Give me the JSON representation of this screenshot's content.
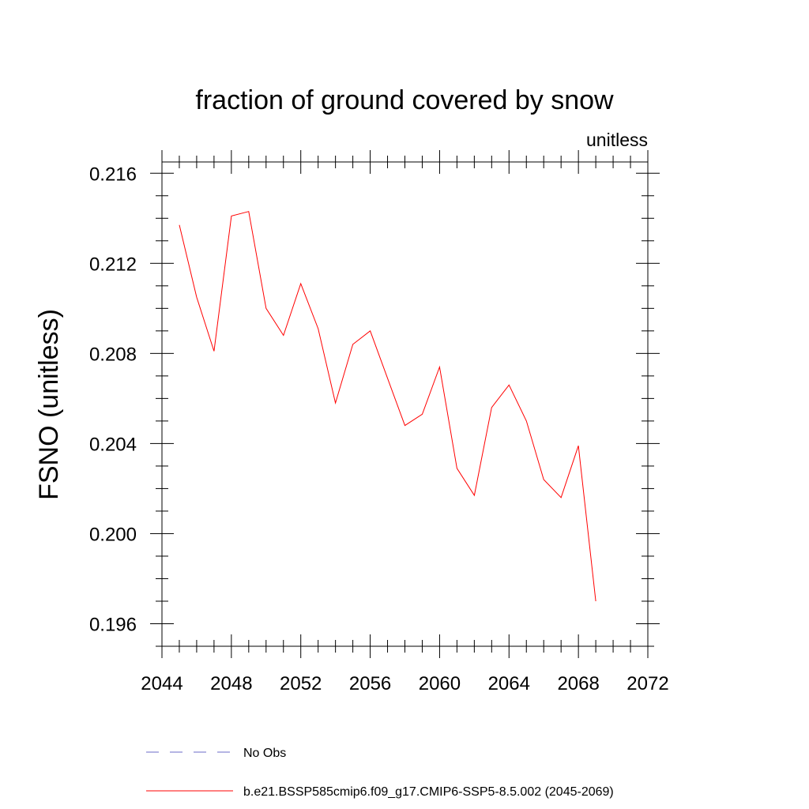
{
  "chart_data": {
    "type": "line",
    "title": "fraction of ground covered by snow",
    "units_label": "unitless",
    "xlabel": "",
    "ylabel": "FSNO  (unitless)",
    "xlim": [
      2044,
      2072
    ],
    "ylim": [
      0.195,
      0.2165
    ],
    "x_ticks": [
      2044,
      2048,
      2052,
      2056,
      2060,
      2064,
      2068,
      2072
    ],
    "x_tick_labels": [
      "2044",
      "2048",
      "2052",
      "2056",
      "2060",
      "2064",
      "2068",
      "2072"
    ],
    "y_ticks": [
      0.196,
      0.2,
      0.204,
      0.208,
      0.212,
      0.216
    ],
    "y_tick_labels": [
      "0.196",
      "0.200",
      "0.204",
      "0.208",
      "0.212",
      "0.216"
    ],
    "grid": false,
    "legend_position": "bottom",
    "series": [
      {
        "name": "b.e21.BSSP585cmip6.f09_g17.CMIP6-SSP5-8.5.002 (2045-2069)",
        "color": "#ff0000",
        "style": "solid",
        "x": [
          2045,
          2046,
          2047,
          2048,
          2049,
          2050,
          2051,
          2052,
          2053,
          2054,
          2055,
          2056,
          2057,
          2058,
          2059,
          2060,
          2061,
          2062,
          2063,
          2064,
          2065,
          2066,
          2067,
          2068,
          2069
        ],
        "values": [
          0.2137,
          0.2105,
          0.2081,
          0.2141,
          0.2143,
          0.21,
          0.2088,
          0.2111,
          0.2091,
          0.2058,
          0.2084,
          0.209,
          0.2069,
          0.2048,
          0.2053,
          0.2074,
          0.2029,
          0.2017,
          0.2056,
          0.2066,
          0.205,
          0.2024,
          0.2016,
          0.2039,
          0.197
        ]
      }
    ],
    "legend": [
      {
        "label": "No Obs",
        "color": "#6b6bc8",
        "style": "dashed"
      },
      {
        "label": "b.e21.BSSP585cmip6.f09_g17.CMIP6-SSP5-8.5.002 (2045-2069)",
        "color": "#ff0000",
        "style": "solid"
      }
    ]
  }
}
